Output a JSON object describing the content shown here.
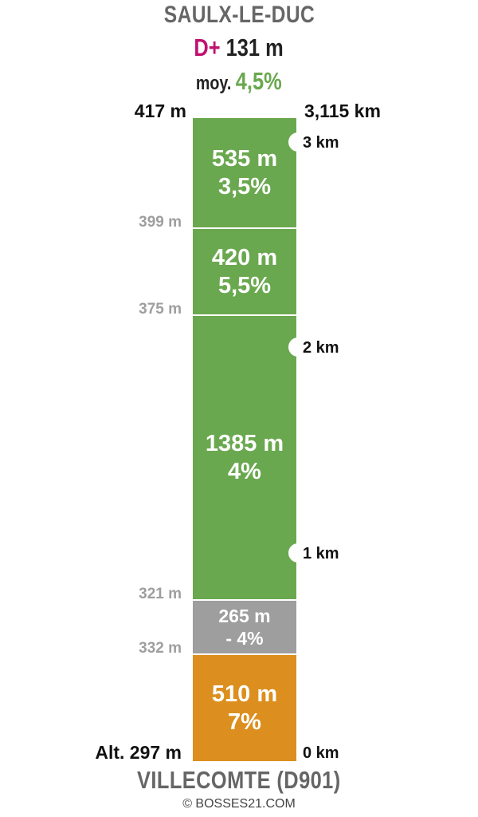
{
  "top_name": "SAULX-LE-DUC",
  "climb": {
    "prefix": "D+",
    "value": "131 m"
  },
  "average": {
    "prefix": "moy.",
    "value": "4,5%"
  },
  "summit_altitude": "417 m",
  "total_distance": "3,115 km",
  "segments": [
    {
      "length": "535 m",
      "grade": "3,5%",
      "color": "#6aa84f"
    },
    {
      "length": "420 m",
      "grade": "5,5%",
      "color": "#6aa84f"
    },
    {
      "length": "1385 m",
      "grade": "4%",
      "color": "#6aa84f"
    },
    {
      "length": "265 m",
      "grade": "- 4%",
      "color": "#9e9e9e"
    },
    {
      "length": "510 m",
      "grade": "7%",
      "color": "#dc8f1e"
    }
  ],
  "altitudes": [
    "399 m",
    "375 m",
    "321 m",
    "332 m"
  ],
  "start_altitude": "Alt. 297 m",
  "km_markers": [
    "3 km",
    "2 km",
    "1 km",
    "0 km"
  ],
  "bottom_name": "VILLECOMTE (D901)",
  "copyright": "© BOSSES21.COM"
}
